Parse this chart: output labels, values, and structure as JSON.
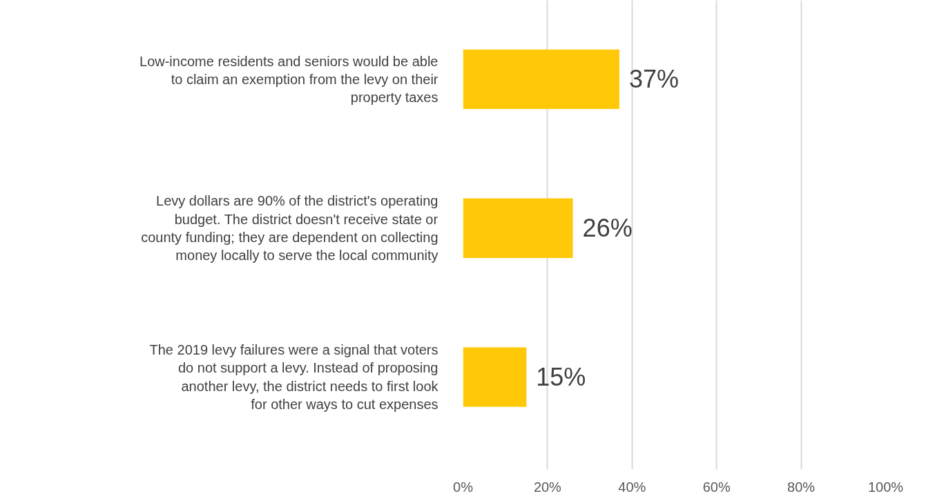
{
  "chart_data": {
    "type": "bar",
    "orientation": "horizontal",
    "categories": [
      "Low-income residents and seniors would be able to claim an exemption from the levy on their property taxes",
      "Levy dollars are 90% of the district's operating budget. The district doesn't receive state or county funding; they are dependent on collecting money locally to serve the local community",
      "The 2019 levy failures were a signal that voters do not support a levy. Instead of proposing another levy, the district needs to first look for other ways to cut expenses"
    ],
    "values": [
      37,
      26,
      15
    ],
    "color": "#ffc90a",
    "value_labels": [
      "37%",
      "26%",
      "15%"
    ],
    "xlim": [
      0,
      100
    ],
    "xticks": [
      {
        "value": 0,
        "label": "0%"
      },
      {
        "value": 20,
        "label": "20%"
      },
      {
        "value": 40,
        "label": "40%"
      },
      {
        "value": 60,
        "label": "60%"
      },
      {
        "value": 80,
        "label": "80%"
      },
      {
        "value": 100,
        "label": "100%"
      }
    ],
    "grid": "x"
  }
}
